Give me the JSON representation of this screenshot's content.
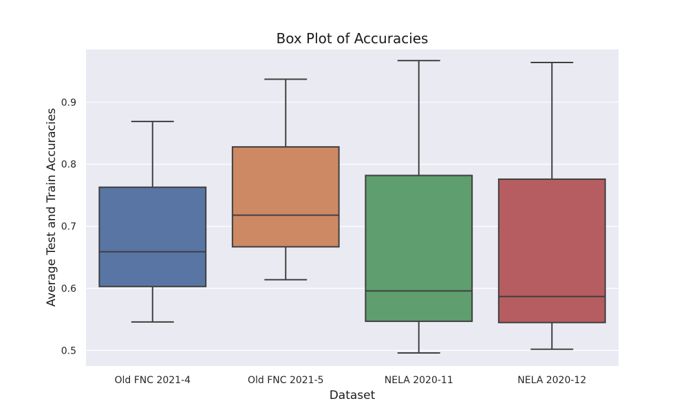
{
  "chart_data": {
    "type": "box",
    "title": "Box Plot of Accuracies",
    "xlabel": "Dataset",
    "ylabel": "Average Test and Train Accuracies",
    "ylim": [
      0.475,
      0.985
    ],
    "yticks": [
      0.5,
      0.6,
      0.7,
      0.8,
      0.9
    ],
    "grid": true,
    "categories": [
      "Old FNC 2021-4",
      "Old FNC 2021-5",
      "NELA 2020-11",
      "NELA 2020-12"
    ],
    "series": [
      {
        "min": 0.546,
        "q1": 0.603,
        "median": 0.659,
        "q3": 0.763,
        "max": 0.869,
        "color": "#5875a4"
      },
      {
        "min": 0.614,
        "q1": 0.667,
        "median": 0.718,
        "q3": 0.828,
        "max": 0.937,
        "color": "#cc8963"
      },
      {
        "min": 0.496,
        "q1": 0.547,
        "median": 0.596,
        "q3": 0.782,
        "max": 0.967,
        "color": "#5f9e6e"
      },
      {
        "min": 0.502,
        "q1": 0.545,
        "median": 0.587,
        "q3": 0.776,
        "max": 0.964,
        "color": "#b55d60"
      }
    ],
    "plot_background": "#eaeaf2",
    "line_color": "#3f3f3f"
  }
}
